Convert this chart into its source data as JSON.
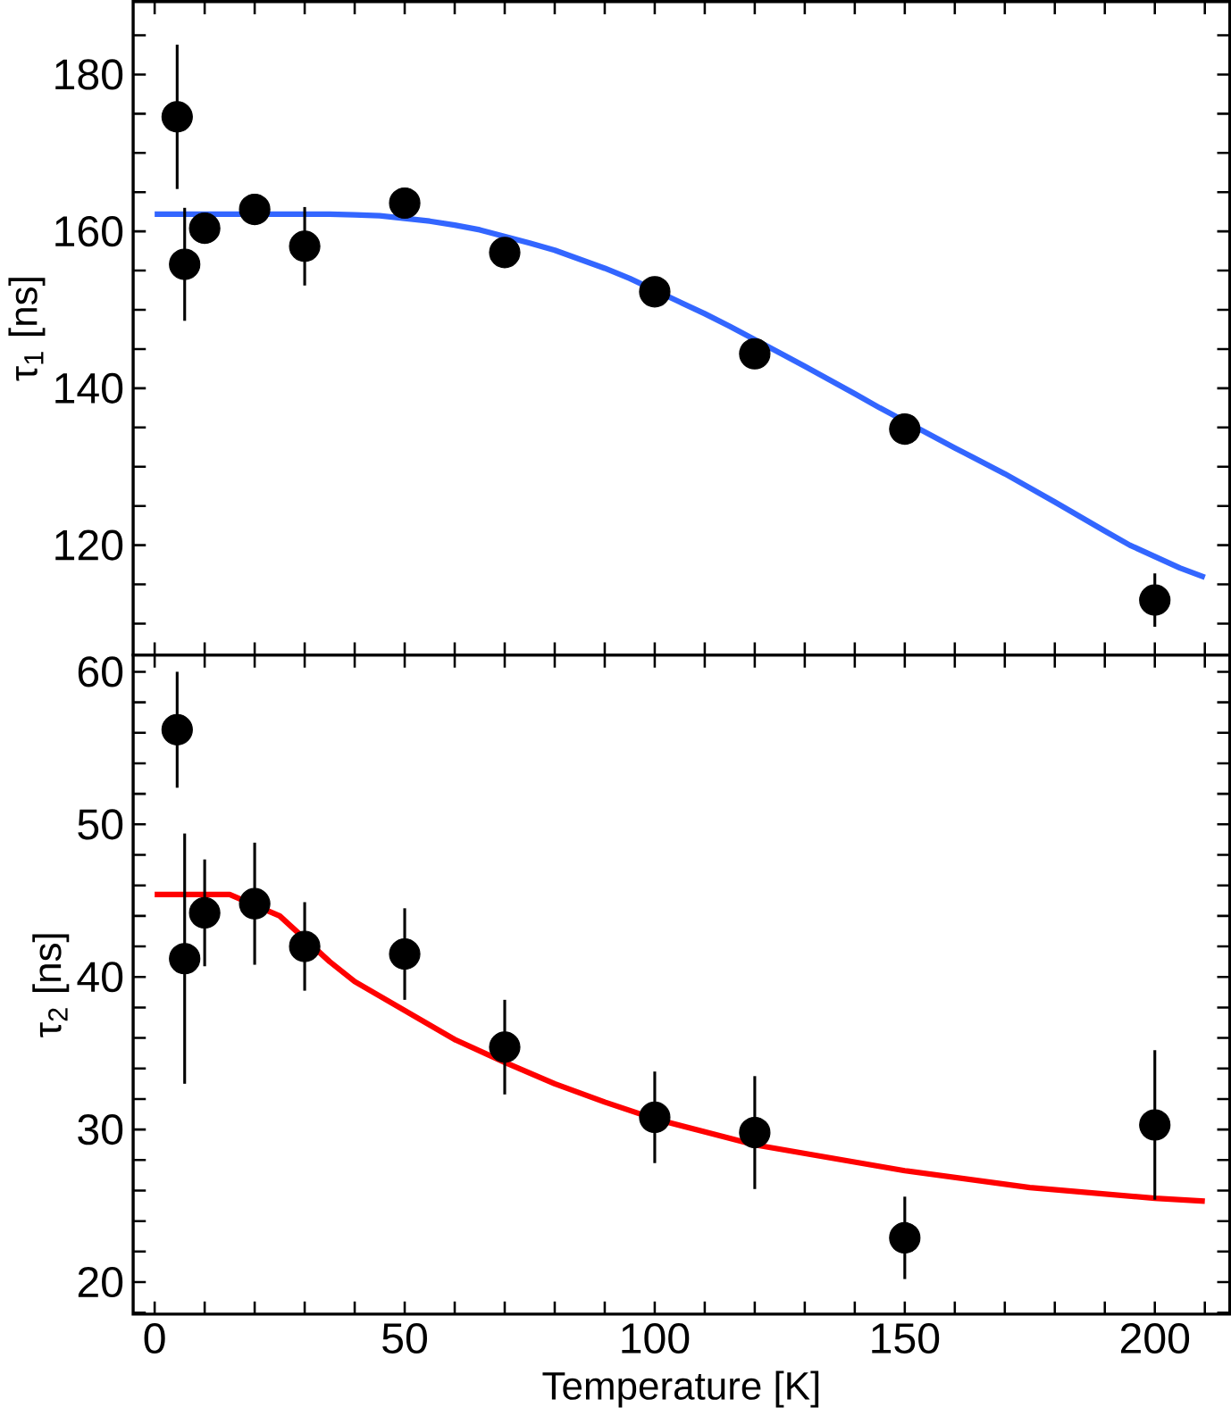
{
  "chart_data": [
    {
      "type": "scatter",
      "ylabel": "τ$_{1}$ [ns]",
      "xlim": [
        -4.3,
        215
      ],
      "ylim": [
        106,
        189.3
      ],
      "tick_labels": "y",
      "xticks": [
        0,
        {
          "value": 10,
          "label": null
        },
        {
          "value": 20,
          "label": null
        },
        {
          "value": 30,
          "label": null
        },
        {
          "value": 40,
          "label": null
        },
        50,
        {
          "value": 60,
          "label": null
        },
        {
          "value": 70,
          "label": null
        },
        {
          "value": 80,
          "label": null
        },
        {
          "value": 90,
          "label": null
        },
        100,
        {
          "value": 110,
          "label": null
        },
        {
          "value": 120,
          "label": null
        },
        {
          "value": 130,
          "label": null
        },
        {
          "value": 140,
          "label": null
        },
        150,
        {
          "value": 160,
          "label": null
        },
        {
          "value": 170,
          "label": null
        },
        {
          "value": 180,
          "label": null
        },
        {
          "value": 190,
          "label": null
        },
        200,
        {
          "value": 210,
          "label": null
        }
      ],
      "yticks": [
        {
          "value": 110,
          "label": null
        },
        {
          "value": 115,
          "label": null
        },
        120,
        {
          "value": 125,
          "label": null
        },
        {
          "value": 130,
          "label": null
        },
        {
          "value": 135,
          "label": null
        },
        140,
        {
          "value": 145,
          "label": null
        },
        {
          "value": 150,
          "label": null
        },
        {
          "value": 155,
          "label": null
        },
        160,
        {
          "value": 165,
          "label": null
        },
        {
          "value": 170,
          "label": null
        },
        {
          "value": 175,
          "label": null
        },
        180,
        {
          "value": 185,
          "label": null
        }
      ],
      "series": [
        {
          "type": "line",
          "color": "#3366ff",
          "marker": "none",
          "line_style": "solid",
          "x": [
            0,
            15,
            25,
            35,
            40,
            45,
            55,
            60,
            65,
            75,
            80,
            90,
            95,
            105,
            110,
            115,
            125,
            130,
            140,
            145,
            155,
            160,
            170,
            180,
            190,
            195,
            205,
            210
          ],
          "values": [
            162.2,
            162.2,
            162.2,
            162.2,
            162.1,
            162.0,
            161.3,
            160.8,
            160.2,
            158.5,
            157.6,
            155.3,
            154.0,
            151.0,
            149.5,
            147.9,
            144.5,
            142.8,
            139.3,
            137.5,
            134.1,
            132.4,
            129.1,
            125.5,
            121.8,
            120.0,
            117.1,
            115.9
          ]
        },
        {
          "color": "#000000",
          "marker": "circle",
          "x": [
            4.5,
            6,
            10,
            20,
            30,
            50,
            70,
            100,
            120,
            150,
            200
          ],
          "values": [
            174.6,
            155.8,
            160.4,
            162.8,
            158.1,
            163.6,
            157.3,
            152.3,
            144.4,
            134.8,
            113.0
          ],
          "errors": [
            9.2,
            7.2,
            null,
            null,
            5,
            null,
            null,
            null,
            null,
            null,
            3.4
          ]
        }
      ]
    },
    {
      "type": "scatter",
      "ylabel": "τ$_{2}$ [ns]",
      "xlabel": "Temperature [K]",
      "xlim": [
        -4.3,
        215
      ],
      "ylim": [
        17.9,
        61.1
      ],
      "xticks": [
        0,
        {
          "value": 10,
          "label": null
        },
        {
          "value": 20,
          "label": null
        },
        {
          "value": 30,
          "label": null
        },
        {
          "value": 40,
          "label": null
        },
        50,
        {
          "value": 60,
          "label": null
        },
        {
          "value": 70,
          "label": null
        },
        {
          "value": 80,
          "label": null
        },
        {
          "value": 90,
          "label": null
        },
        100,
        {
          "value": 110,
          "label": null
        },
        {
          "value": 120,
          "label": null
        },
        {
          "value": 130,
          "label": null
        },
        {
          "value": 140,
          "label": null
        },
        150,
        {
          "value": 160,
          "label": null
        },
        {
          "value": 170,
          "label": null
        },
        {
          "value": 180,
          "label": null
        },
        {
          "value": 190,
          "label": null
        },
        200,
        {
          "value": 210,
          "label": null
        }
      ],
      "yticks": [
        {
          "value": 18,
          "label": null
        },
        20,
        {
          "value": 22,
          "label": null
        },
        {
          "value": 24,
          "label": null
        },
        {
          "value": 26,
          "label": null
        },
        {
          "value": 28,
          "label": null
        },
        30,
        {
          "value": 32,
          "label": null
        },
        {
          "value": 34,
          "label": null
        },
        {
          "value": 36,
          "label": null
        },
        {
          "value": 38,
          "label": null
        },
        40,
        {
          "value": 42,
          "label": null
        },
        {
          "value": 44,
          "label": null
        },
        {
          "value": 46,
          "label": null
        },
        {
          "value": 48,
          "label": null
        },
        50,
        {
          "value": 52,
          "label": null
        },
        {
          "value": 54,
          "label": null
        },
        {
          "value": 56,
          "label": null
        },
        {
          "value": 58,
          "label": null
        },
        60
      ],
      "series": [
        {
          "type": "line",
          "color": "#ff0000",
          "marker": "none",
          "line_style": "solid",
          "x": [
            0,
            10,
            15,
            25,
            35,
            40,
            50,
            60,
            70,
            80,
            90,
            100,
            120,
            150,
            175,
            200,
            210
          ],
          "values": [
            45.4,
            45.4,
            45.4,
            44.0,
            41.0,
            39.7,
            37.8,
            35.9,
            34.4,
            33.0,
            31.8,
            30.7,
            29.0,
            27.3,
            26.2,
            25.5,
            25.3
          ]
        },
        {
          "color": "#000000",
          "marker": "circle",
          "x": [
            4.5,
            6,
            10,
            20,
            30,
            50,
            70,
            100,
            120,
            150,
            200
          ],
          "values": [
            56.2,
            41.2,
            44.2,
            44.8,
            42.0,
            41.5,
            35.4,
            30.8,
            29.8,
            22.9,
            30.3
          ],
          "errors": [
            3.8,
            8.2,
            3.5,
            4,
            2.9,
            3,
            3.1,
            3,
            3.7,
            2.7,
            4.9
          ]
        }
      ]
    }
  ]
}
